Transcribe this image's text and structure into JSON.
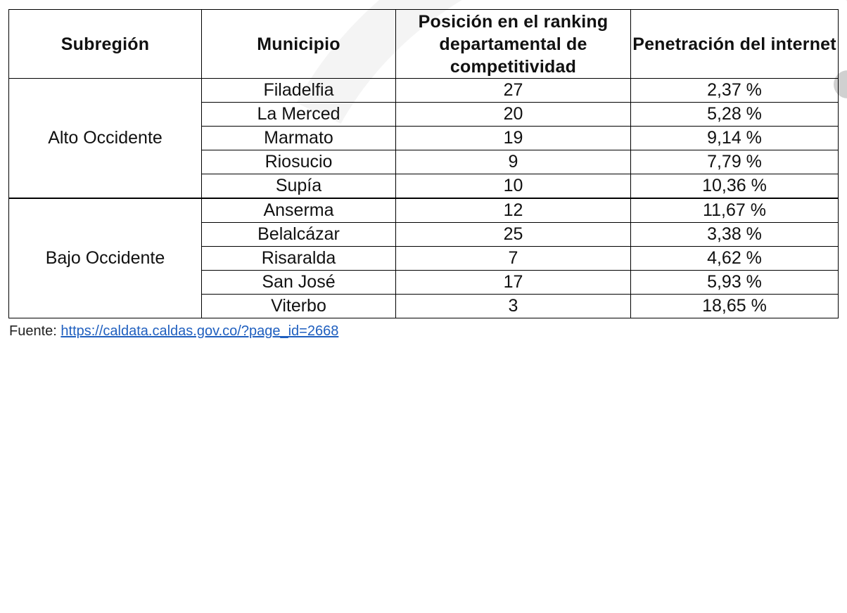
{
  "table": {
    "headers": [
      "Subregión",
      "Municipio",
      "Posición en el ranking departamental de competitividad",
      "Penetración del internet"
    ],
    "groups": [
      {
        "region": "Alto Occidente",
        "rows": [
          {
            "municipio": "Filadelfia",
            "posicion": "27",
            "penetracion": "2,37 %"
          },
          {
            "municipio": "La Merced",
            "posicion": "20",
            "penetracion": "5,28 %"
          },
          {
            "municipio": "Marmato",
            "posicion": "19",
            "penetracion": "9,14 %"
          },
          {
            "municipio": "Riosucio",
            "posicion": "9",
            "penetracion": "7,79 %"
          },
          {
            "municipio": "Supía",
            "posicion": "10",
            "penetracion": "10,36 %"
          }
        ]
      },
      {
        "region": "Bajo Occidente",
        "rows": [
          {
            "municipio": "Anserma",
            "posicion": "12",
            "penetracion": "11,67 %"
          },
          {
            "municipio": "Belalcázar",
            "posicion": "25",
            "penetracion": "3,38 %"
          },
          {
            "municipio": "Risaralda",
            "posicion": "7",
            "penetracion": "4,62 %"
          },
          {
            "municipio": "San José",
            "posicion": "17",
            "penetracion": "5,93 %"
          },
          {
            "municipio": "Viterbo",
            "posicion": "3",
            "penetracion": "18,65 %"
          }
        ]
      }
    ]
  },
  "source": {
    "label": "Fuente: ",
    "link_text": "https://caldata.caldas.gov.co/?page_id=2668"
  }
}
